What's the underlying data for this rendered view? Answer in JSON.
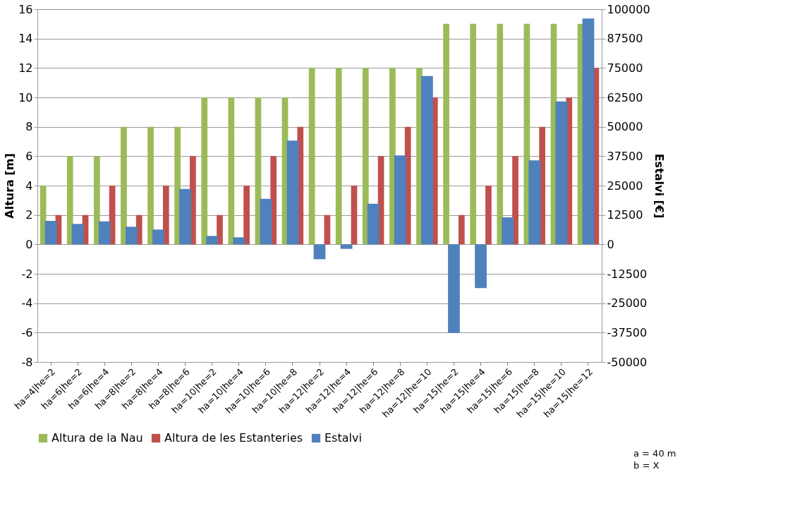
{
  "chart_data": {
    "type": "bar",
    "ylabel": "Altura [m]",
    "y2label": "Estalvi [€]",
    "categories": [
      "ha=4|he=2",
      "ha=6|he=2",
      "ha=6|he=4",
      "ha=8|he=2",
      "ha=8|he=4",
      "ha=8|he=6",
      "ha=10|he=2",
      "ha=10|he=4",
      "ha=10|he=6",
      "ha=10|he=8",
      "ha=12|he=2",
      "ha=12|he=4",
      "ha=12|he=6",
      "ha=12|he=8",
      "ha=12|he=10",
      "ha=15|he=2",
      "ha=15|he=4",
      "ha=15|he=6",
      "ha=15|he=8",
      "ha=15|he=10",
      "ha=15|he=12"
    ],
    "series": [
      {
        "name": "Altura de la Nau",
        "color": "#9bbb59",
        "values": [
          4,
          6,
          6,
          8,
          8,
          8,
          10,
          10,
          10,
          10,
          12,
          12,
          12,
          12,
          12,
          15,
          15,
          15,
          15,
          15,
          15
        ]
      },
      {
        "name": "Altura de les Estanteries",
        "color": "#c0504d",
        "values": [
          2,
          2,
          4,
          2,
          4,
          6,
          2,
          4,
          6,
          8,
          2,
          4,
          6,
          8,
          10,
          2,
          4,
          6,
          8,
          10,
          12
        ]
      },
      {
        "name": "Estalvi",
        "color": "#4f81bd",
        "axis": "y2",
        "values": [
          10000,
          8700,
          9800,
          7500,
          6300,
          23600,
          3600,
          3000,
          19400,
          44100,
          -6300,
          -1900,
          17300,
          37800,
          71600,
          -37600,
          -18600,
          11500,
          35700,
          60800,
          96000
        ]
      }
    ],
    "ylim": [
      -8,
      16
    ],
    "yticks": [
      -8,
      -6,
      -4,
      -2,
      0,
      2,
      4,
      6,
      8,
      10,
      12,
      14,
      16
    ],
    "y2lim": [
      -50000,
      100000
    ],
    "y2ticks": [
      -50000,
      -37500,
      -25000,
      -12500,
      0,
      12500,
      25000,
      37500,
      50000,
      62500,
      75000,
      87500,
      100000
    ],
    "grid": "y",
    "legend": "bottom",
    "annotations": [
      "a = 40 m",
      "b = X"
    ]
  }
}
